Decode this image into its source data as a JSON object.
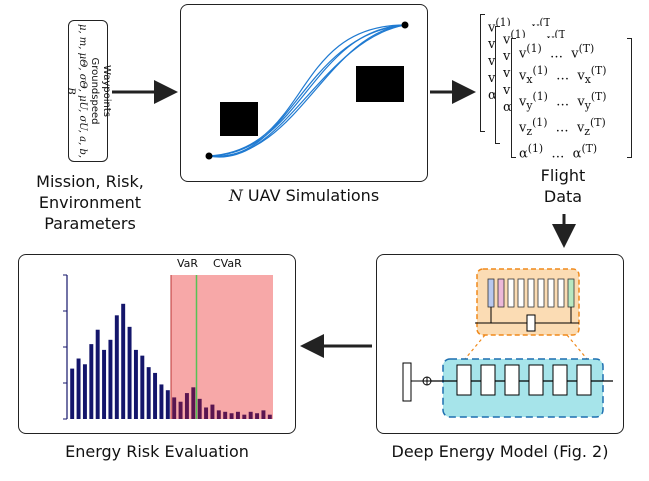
{
  "params": {
    "line1": "Waypoints",
    "line2": "Groundspeed",
    "line3": "μ, m, μΘ, σΘ, μU, σU, a, b, B"
  },
  "labels": {
    "mission": [
      "Mission, Risk,",
      "Environment",
      "Parameters"
    ],
    "simulations_n": "N",
    "simulations_rest": " UAV Simulations",
    "flight_data": [
      "Flight",
      "Data"
    ],
    "energy_eval": "Energy Risk Evaluation",
    "deep_model": "Deep Energy Model (Fig. 2)",
    "var": "VaR",
    "cvar": "CVaR"
  },
  "matrix": {
    "rows": [
      "v(1)  …  v(T)",
      "vx(1)  …  vx(T)",
      "vy(1)  …  vy(T)",
      "vz(1)  …  vz(T)",
      "α(1)  …  α(T)"
    ]
  },
  "colors": {
    "trajectory": "#1f7ad1",
    "bar": "#14166b",
    "risk_region": "#f7a8a8",
    "cvar_line": "#55c255",
    "mlp_panel": "#a6e4ea",
    "zoom_panel": "#fbdcb4",
    "zoom_border": "#f08a1c",
    "blue_cell": "#b8c8ee",
    "pink_cell": "#ecb8d8"
  },
  "chart_data": {
    "type": "bar",
    "values": [
      0.35,
      0.42,
      0.38,
      0.52,
      0.62,
      0.48,
      0.55,
      0.72,
      0.8,
      0.64,
      0.48,
      0.44,
      0.36,
      0.32,
      0.24,
      0.2,
      0.15,
      0.12,
      0.18,
      0.22,
      0.14,
      0.08,
      0.1,
      0.06,
      0.05,
      0.04,
      0.05,
      0.03,
      0.05,
      0.04,
      0.06,
      0.03
    ],
    "var_index": 16,
    "cvar_index": 20
  }
}
